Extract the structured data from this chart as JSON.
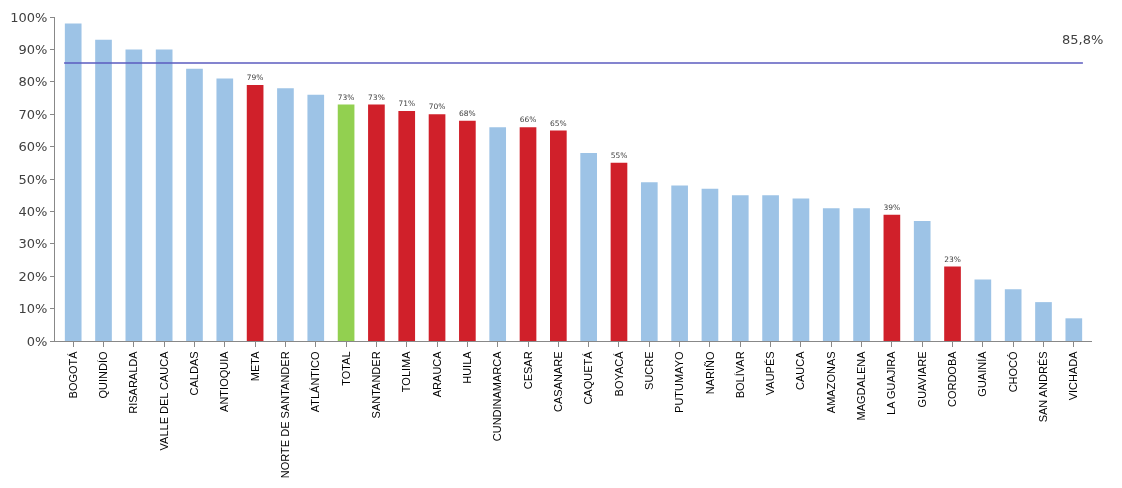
{
  "chart_data": {
    "type": "bar",
    "categories": [
      "BOGOTÁ",
      "QUINDÍO",
      "RISARALDA",
      "VALLE DEL CAUCA",
      "CALDAS",
      "ANTIOQUIA",
      "META",
      "NORTE DE SANTANDER",
      "ATLÁNTICO",
      "TOTAL",
      "SANTANDER",
      "TOLIMA",
      "ARAUCA",
      "HUILA",
      "CUNDINAMARCA",
      "CESAR",
      "CASANARE",
      "CAQUETÁ",
      "BOYACÁ",
      "SUCRE",
      "PUTUMAYO",
      "NARIÑO",
      "BOLÍVAR",
      "VAUPÉS",
      "CAUCA",
      "AMAZONAS",
      "MAGDALENA",
      "LA GUAJIRA",
      "GUAVIARE",
      "CORDOBA",
      "GUAINÍA",
      "CHOCÓ",
      "SAN ANDRÉS",
      "VICHADA"
    ],
    "values": [
      98,
      93,
      90,
      90,
      84,
      81,
      79,
      78,
      76,
      73,
      73,
      71,
      70,
      68,
      66,
      66,
      65,
      58,
      55,
      49,
      48,
      47,
      45,
      45,
      44,
      41,
      41,
      39,
      37,
      23,
      19,
      16,
      12,
      7
    ],
    "colors": [
      "#9dc3e6",
      "#9dc3e6",
      "#9dc3e6",
      "#9dc3e6",
      "#9dc3e6",
      "#9dc3e6",
      "#d0202a",
      "#9dc3e6",
      "#9dc3e6",
      "#92d050",
      "#d0202a",
      "#d0202a",
      "#d0202a",
      "#d0202a",
      "#9dc3e6",
      "#d0202a",
      "#d0202a",
      "#9dc3e6",
      "#d0202a",
      "#9dc3e6",
      "#9dc3e6",
      "#9dc3e6",
      "#9dc3e6",
      "#9dc3e6",
      "#9dc3e6",
      "#9dc3e6",
      "#9dc3e6",
      "#d0202a",
      "#9dc3e6",
      "#d0202a",
      "#9dc3e6",
      "#9dc3e6",
      "#9dc3e6",
      "#9dc3e6"
    ],
    "value_labels": [
      null,
      null,
      null,
      null,
      null,
      null,
      "79%",
      null,
      null,
      "73%",
      "73%",
      "71%",
      "70%",
      "68%",
      null,
      "66%",
      "65%",
      null,
      "55%",
      null,
      null,
      null,
      null,
      null,
      null,
      null,
      null,
      "39%",
      null,
      "23%",
      null,
      null,
      null,
      null
    ],
    "ylim": [
      0,
      100
    ],
    "yticks": [
      {
        "value": 0,
        "label": "0%"
      },
      {
        "value": 10,
        "label": "10%"
      },
      {
        "value": 20,
        "label": "20%"
      },
      {
        "value": 30,
        "label": "30%"
      },
      {
        "value": 40,
        "label": "40%"
      },
      {
        "value": 50,
        "label": "50%"
      },
      {
        "value": 60,
        "label": "60%"
      },
      {
        "value": 70,
        "label": "70%"
      },
      {
        "value": 80,
        "label": "80%"
      },
      {
        "value": 90,
        "label": "90%"
      },
      {
        "value": 100,
        "label": "100%"
      }
    ],
    "ref_lines": [
      {
        "axis": "y",
        "value": 85.8,
        "label": "85,8%",
        "color": "#5b5bbf",
        "line_style": "solid"
      }
    ]
  }
}
